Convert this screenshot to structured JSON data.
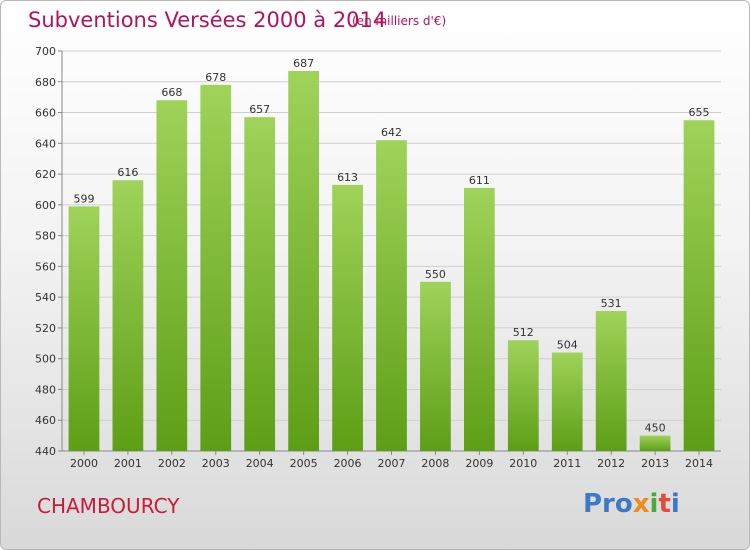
{
  "header": {
    "title": "Subventions Versées 2000 à 2014",
    "subtitle": "(en milliers d'€)"
  },
  "footer": {
    "commune": "CHAMBOURCY",
    "logo_parts": [
      "Pro",
      "x",
      "i",
      "t",
      "i"
    ]
  },
  "colors": {
    "title": "#b5125b",
    "commune": "#c41e3a",
    "bar_top": "#9fd35a",
    "bar_bottom": "#5e9e16",
    "grid": "#cfcfcf",
    "logo": [
      "#3f78c6",
      "#f08a1c",
      "#4aa93a",
      "#e24b3a",
      "#3f78c6"
    ]
  },
  "chart_data": {
    "type": "bar",
    "categories": [
      "2000",
      "2001",
      "2002",
      "2003",
      "2004",
      "2005",
      "2006",
      "2007",
      "2008",
      "2009",
      "2010",
      "2011",
      "2012",
      "2013",
      "2014"
    ],
    "values": [
      599,
      616,
      668,
      678,
      657,
      687,
      613,
      642,
      550,
      611,
      512,
      504,
      531,
      450,
      655
    ],
    "ylim": [
      440,
      700
    ],
    "yticks": [
      440,
      460,
      480,
      500,
      520,
      540,
      560,
      580,
      600,
      620,
      640,
      660,
      680,
      700
    ],
    "grid": true,
    "data_labels": true
  }
}
